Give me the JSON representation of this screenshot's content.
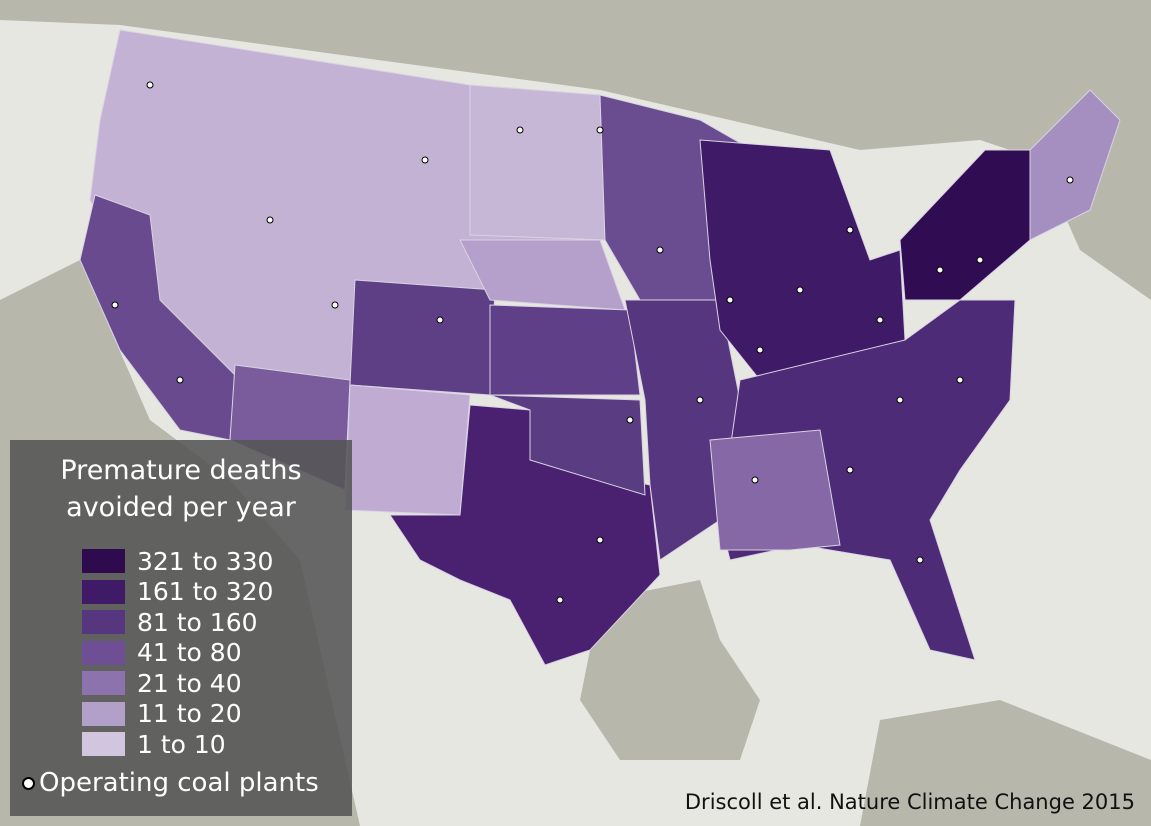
{
  "legend": {
    "title": "Premature deaths avoided per year",
    "items": [
      {
        "label": "321 to 330",
        "color": "#2e0a4f"
      },
      {
        "label": "161 to 320",
        "color": "#3f1a66"
      },
      {
        "label": "81 to 160",
        "color": "#56367e"
      },
      {
        "label": "41 to 80",
        "color": "#6e4f96"
      },
      {
        "label": "21 to 40",
        "color": "#8c73ad"
      },
      {
        "label": "11 to 20",
        "color": "#b3a0c8"
      },
      {
        "label": "1 to 10",
        "color": "#d2c6df"
      }
    ],
    "marker_label": "Operating coal plants"
  },
  "credit": "Driscoll et al. Nature Climate Change 2015"
}
